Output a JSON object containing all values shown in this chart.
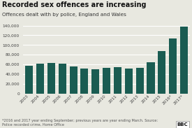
{
  "title": "Recorded sex offences are increasing",
  "subtitle": "Offences dealt with by police, England and Wales",
  "footnote": "*2016 and 2017 year ending September; previous years are year ending March. Source:\nPolice recorded crime, Home Office",
  "categories": [
    "2003",
    "2004",
    "2005",
    "2006",
    "2007",
    "2008",
    "2009",
    "2010",
    "2011",
    "2012",
    "2013",
    "2014",
    "2015",
    "2016*",
    "2017*"
  ],
  "values": [
    57000,
    62000,
    62500,
    62000,
    56000,
    52000,
    50000,
    52500,
    54000,
    52000,
    53000,
    65000,
    88000,
    114000,
    138000
  ],
  "bar_color": "#1a5c52",
  "ylim": [
    0,
    140000
  ],
  "yticks": [
    0,
    20000,
    40000,
    60000,
    80000,
    100000,
    120000,
    140000
  ],
  "background_color": "#e8e8e0",
  "plot_bg_color": "#e8e8e0",
  "grid_color": "#ffffff",
  "title_fontsize": 7.0,
  "subtitle_fontsize": 5.2,
  "footnote_fontsize": 3.6,
  "tick_fontsize": 4.2,
  "ytick_fontsize": 4.2
}
